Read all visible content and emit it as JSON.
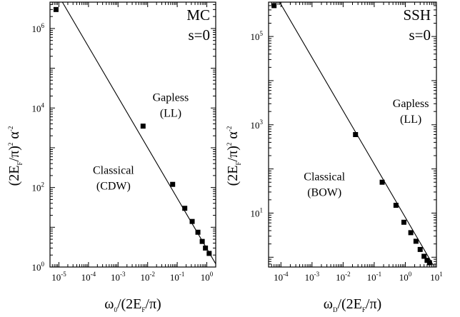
{
  "chart_data": [
    {
      "type": "scatter",
      "corner_label": [
        "MC",
        "s=0"
      ],
      "region_labels": [
        {
          "lines": [
            "Gapless",
            "(LL)"
          ],
          "x": 0.06,
          "y": 15000
        },
        {
          "lines": [
            "Classical",
            "(CDW)"
          ],
          "x": 0.0007,
          "y": 220
        }
      ],
      "ylabel": {
        "base": "(2E",
        "sub": "F",
        "mid": "/π)",
        "sup": "2",
        "tail": " α",
        "sup2": "-2"
      },
      "xlabel": {
        "base": "ω",
        "sub": "0",
        "tail": "/(2E",
        "sub2": "F",
        "tail2": "/π)"
      },
      "xlim": [
        5e-06,
        2
      ],
      "ylim": [
        1,
        4600000
      ],
      "x_scale": "log",
      "y_scale": "log",
      "xticks": [
        {
          "value": 1e-05,
          "base": "10",
          "exp": "-5"
        },
        {
          "value": 0.0001,
          "base": "10",
          "exp": "-4"
        },
        {
          "value": 0.001,
          "base": "10",
          "exp": "-3"
        },
        {
          "value": 0.01,
          "base": "10",
          "exp": "-2"
        },
        {
          "value": 0.1,
          "base": "10",
          "exp": "-1"
        },
        {
          "value": 1,
          "base": "10",
          "exp": "0"
        }
      ],
      "yticks": [
        {
          "value": 1,
          "base": "10",
          "exp": "0"
        },
        {
          "value": 100,
          "base": "10",
          "exp": "2"
        },
        {
          "value": 10000,
          "base": "10",
          "exp": "4"
        },
        {
          "value": 1000000,
          "base": "10",
          "exp": "6"
        }
      ],
      "points": {
        "x": [
          8e-06,
          0.007,
          0.07,
          0.18,
          0.32,
          0.5,
          0.7,
          0.9,
          1.2
        ],
        "y": [
          3000000,
          3500,
          120,
          30,
          14,
          7.5,
          4.4,
          3.0,
          2.2
        ]
      },
      "fit_line": {
        "x": [
          1e-05,
          2
        ],
        "y": [
          6500000,
          1.2
        ]
      }
    },
    {
      "type": "scatter",
      "corner_label": [
        "SSH",
        "s=0"
      ],
      "region_labels": [
        {
          "lines": [
            "Gapless",
            "(LL)"
          ],
          "x": 1.5,
          "y": 2500
        },
        {
          "lines": [
            "Classical",
            "(BOW)"
          ],
          "x": 0.0025,
          "y": 55
        }
      ],
      "ylabel": {
        "base": "(2E",
        "sub": "F",
        "mid": "/π)",
        "sup": "2",
        "tail": " α",
        "sup2": "-2"
      },
      "xlabel": {
        "base": "ω",
        "sub": "D",
        "tail": "/(2E",
        "sub2": "F",
        "tail2": "/π)"
      },
      "xlim": [
        4e-05,
        10
      ],
      "ylim": [
        0.6,
        600000
      ],
      "x_scale": "log",
      "y_scale": "log",
      "xticks": [
        {
          "value": 0.0001,
          "base": "10",
          "exp": "-4"
        },
        {
          "value": 0.001,
          "base": "10",
          "exp": "-3"
        },
        {
          "value": 0.01,
          "base": "10",
          "exp": "-2"
        },
        {
          "value": 0.1,
          "base": "10",
          "exp": "-1"
        },
        {
          "value": 1,
          "base": "10",
          "exp": "0"
        },
        {
          "value": 10,
          "base": "10",
          "exp": "1"
        }
      ],
      "yticks": [
        {
          "value": 10,
          "base": "10",
          "exp": "1"
        },
        {
          "value": 1000,
          "base": "10",
          "exp": "3"
        },
        {
          "value": 100000,
          "base": "10",
          "exp": "5"
        }
      ],
      "points": {
        "x": [
          6e-05,
          0.025,
          0.18,
          0.5,
          0.9,
          1.5,
          2.2,
          3.0,
          4.0,
          5.0,
          6.0
        ],
        "y": [
          500000,
          600,
          50,
          15,
          6.2,
          3.6,
          2.3,
          1.5,
          1.05,
          0.85,
          0.75
        ]
      },
      "fit_line": {
        "x": [
          8e-05,
          8
        ],
        "y": [
          700000,
          0.65
        ]
      }
    }
  ]
}
